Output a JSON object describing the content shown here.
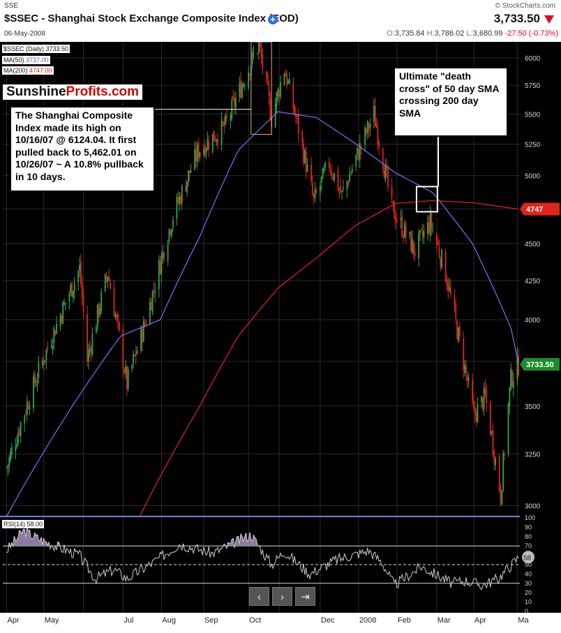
{
  "header": {
    "exchange": "SSE",
    "title": "$SSEC - Shanghai Stock Exchange Composite Index (EOD)",
    "date": "06-May-2008",
    "logo": "© StockCharts.com",
    "price": "3,733.50",
    "open_label": "O:",
    "open": "3,735.84",
    "high_label": "H:",
    "high": "3,786.02",
    "low_label": "L:",
    "low": "3,680.99",
    "change": "-27.50 (-0.73%)"
  },
  "legend": {
    "main": "$SSEC (Daily) 3733.50",
    "ma50_label": "MA(50)",
    "ma50_value": "3737.00",
    "ma200_label": "MA(200)",
    "ma200_value": "4747.00",
    "rsi_label": "RSI(14)",
    "rsi_value": "58.00"
  },
  "annotations": {
    "brand_a": "Sunshine",
    "brand_b": "Profits.com",
    "high_note": "The Shanghai Composite Index made its high on 10/16/07 @ 6124.04. It first pulled back to 5,462.01 on 10/26/07 ~ A 10.8% pullback in 10 days.",
    "cross_note": "Ultimate \"death cross\" of 50 day SMA crossing 200 day SMA"
  },
  "colors": {
    "background": "#000000",
    "up": "#2ea84a",
    "down": "#e0261c",
    "ma50": "#7b74f0",
    "ma200": "#e3241b",
    "rsi": "#cfcfcf",
    "last_price_tag": "#1e8a2e",
    "ma200_tag": "#e3241b"
  },
  "icons": [
    "add-icon",
    "down-arrow-icon",
    "prev-icon",
    "next-icon",
    "end-icon"
  ],
  "chart_data": {
    "type": "candlestick",
    "title": "$SSEC - Shanghai Stock Exchange Composite Index (EOD)",
    "x_ticks": [
      "Apr",
      "May",
      "Jul",
      "Aug",
      "Sep",
      "Oct",
      "Dec",
      "2008",
      "Feb",
      "Mar",
      "Apr",
      "Ma"
    ],
    "y_ticks": [
      3000,
      3250,
      3500,
      3750,
      4000,
      4250,
      4500,
      4750,
      5000,
      5250,
      5500,
      5750,
      6000
    ],
    "ylim": [
      2950,
      6150
    ],
    "y_scale": "log",
    "price_tag": "3733.50",
    "ma200_tag": "4747",
    "price_anchors": [
      [
        "2007-04-02",
        3180
      ],
      [
        "2007-04-20",
        3550
      ],
      [
        "2007-05-10",
        3950
      ],
      [
        "2007-05-29",
        4330
      ],
      [
        "2007-06-04",
        3760
      ],
      [
        "2007-06-20",
        4300
      ],
      [
        "2007-07-05",
        3620
      ],
      [
        "2007-07-20",
        4000
      ],
      [
        "2007-08-10",
        4700
      ],
      [
        "2007-08-30",
        5200
      ],
      [
        "2007-09-20",
        5400
      ],
      [
        "2007-10-16",
        6124
      ],
      [
        "2007-10-26",
        5462
      ],
      [
        "2007-11-05",
        5900
      ],
      [
        "2007-11-28",
        4800
      ],
      [
        "2007-12-10",
        5100
      ],
      [
        "2007-12-20",
        4850
      ],
      [
        "2008-01-14",
        5500
      ],
      [
        "2008-01-28",
        4750
      ],
      [
        "2008-02-15",
        4450
      ],
      [
        "2008-02-27",
        4650
      ],
      [
        "2008-03-10",
        4300
      ],
      [
        "2008-03-20",
        3900
      ],
      [
        "2008-04-01",
        3450
      ],
      [
        "2008-04-10",
        3550
      ],
      [
        "2008-04-22",
        3050
      ],
      [
        "2008-04-30",
        3650
      ],
      [
        "2008-05-06",
        3733
      ]
    ],
    "ma50_anchors": [
      [
        "2007-04-02",
        2950
      ],
      [
        "2007-05-29",
        3560
      ],
      [
        "2007-06-30",
        3900
      ],
      [
        "2007-07-31",
        4000
      ],
      [
        "2007-08-31",
        4550
      ],
      [
        "2007-09-30",
        5200
      ],
      [
        "2007-10-31",
        5520
      ],
      [
        "2007-11-30",
        5470
      ],
      [
        "2007-12-31",
        5250
      ],
      [
        "2008-01-31",
        5020
      ],
      [
        "2008-02-29",
        4870
      ],
      [
        "2008-03-31",
        4500
      ],
      [
        "2008-04-30",
        3950
      ],
      [
        "2008-05-06",
        3737
      ]
    ],
    "ma200_anchors": [
      [
        "2007-07-15",
        2950
      ],
      [
        "2007-08-31",
        3500
      ],
      [
        "2007-09-30",
        3900
      ],
      [
        "2007-10-31",
        4200
      ],
      [
        "2007-11-30",
        4400
      ],
      [
        "2007-12-31",
        4630
      ],
      [
        "2008-01-31",
        4790
      ],
      [
        "2008-02-29",
        4810
      ],
      [
        "2008-03-31",
        4795
      ],
      [
        "2008-05-06",
        4747
      ]
    ],
    "rsi": {
      "y_ticks": [
        0,
        10,
        20,
        30,
        40,
        50,
        60,
        70,
        80,
        90,
        100
      ],
      "levels": [
        30,
        50,
        70
      ],
      "last": 58,
      "anchors": [
        [
          "2007-04-02",
          65
        ],
        [
          "2007-04-15",
          86
        ],
        [
          "2007-05-01",
          75
        ],
        [
          "2007-05-29",
          60
        ],
        [
          "2007-06-10",
          35
        ],
        [
          "2007-06-25",
          45
        ],
        [
          "2007-07-05",
          35
        ],
        [
          "2007-07-25",
          52
        ],
        [
          "2007-08-15",
          72
        ],
        [
          "2007-09-10",
          62
        ],
        [
          "2007-10-10",
          82
        ],
        [
          "2007-10-26",
          50
        ],
        [
          "2007-11-05",
          64
        ],
        [
          "2007-11-25",
          40
        ],
        [
          "2007-12-15",
          55
        ],
        [
          "2008-01-10",
          65
        ],
        [
          "2008-01-20",
          53
        ],
        [
          "2008-01-30",
          28
        ],
        [
          "2008-02-20",
          48
        ],
        [
          "2008-03-15",
          30
        ],
        [
          "2008-03-25",
          33
        ],
        [
          "2008-04-08",
          28
        ],
        [
          "2008-04-20",
          35
        ],
        [
          "2008-05-06",
          58
        ]
      ]
    }
  }
}
